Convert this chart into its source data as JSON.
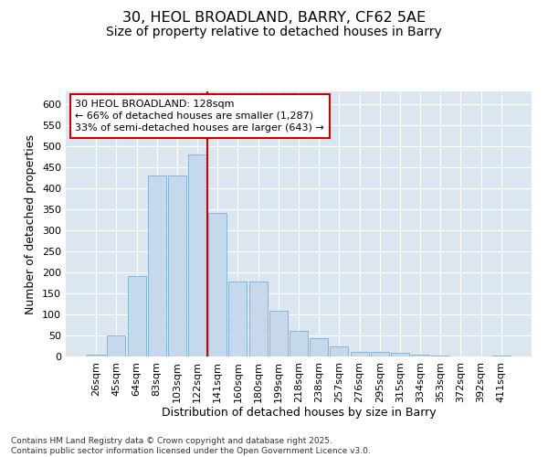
{
  "title1": "30, HEOL BROADLAND, BARRY, CF62 5AE",
  "title2": "Size of property relative to detached houses in Barry",
  "xlabel": "Distribution of detached houses by size in Barry",
  "ylabel": "Number of detached properties",
  "bar_labels": [
    "26sqm",
    "45sqm",
    "64sqm",
    "83sqm",
    "103sqm",
    "122sqm",
    "141sqm",
    "160sqm",
    "180sqm",
    "199sqm",
    "218sqm",
    "238sqm",
    "257sqm",
    "276sqm",
    "295sqm",
    "315sqm",
    "334sqm",
    "353sqm",
    "372sqm",
    "392sqm",
    "411sqm"
  ],
  "bar_values": [
    4,
    51,
    191,
    430,
    430,
    480,
    340,
    178,
    178,
    108,
    60,
    43,
    23,
    10,
    10,
    8,
    5,
    2,
    1,
    1,
    2
  ],
  "bar_color": "#c5d8ec",
  "bar_edge_color": "#7aafd4",
  "bg_color": "#dce6f0",
  "property_line_x": 5.5,
  "annotation_text": "30 HEOL BROADLAND: 128sqm\n← 66% of detached houses are smaller (1,287)\n33% of semi-detached houses are larger (643) →",
  "annotation_box_color": "#ffffff",
  "annotation_box_edge": "#cc0000",
  "vline_color": "#cc0000",
  "ylim": [
    0,
    630
  ],
  "yticks": [
    0,
    50,
    100,
    150,
    200,
    250,
    300,
    350,
    400,
    450,
    500,
    550,
    600
  ],
  "footnote": "Contains HM Land Registry data © Crown copyright and database right 2025.\nContains public sector information licensed under the Open Government Licence v3.0.",
  "title1_fontsize": 11.5,
  "title2_fontsize": 10,
  "label_fontsize": 9,
  "tick_fontsize": 8,
  "annotation_fontsize": 8,
  "footnote_fontsize": 6.5
}
